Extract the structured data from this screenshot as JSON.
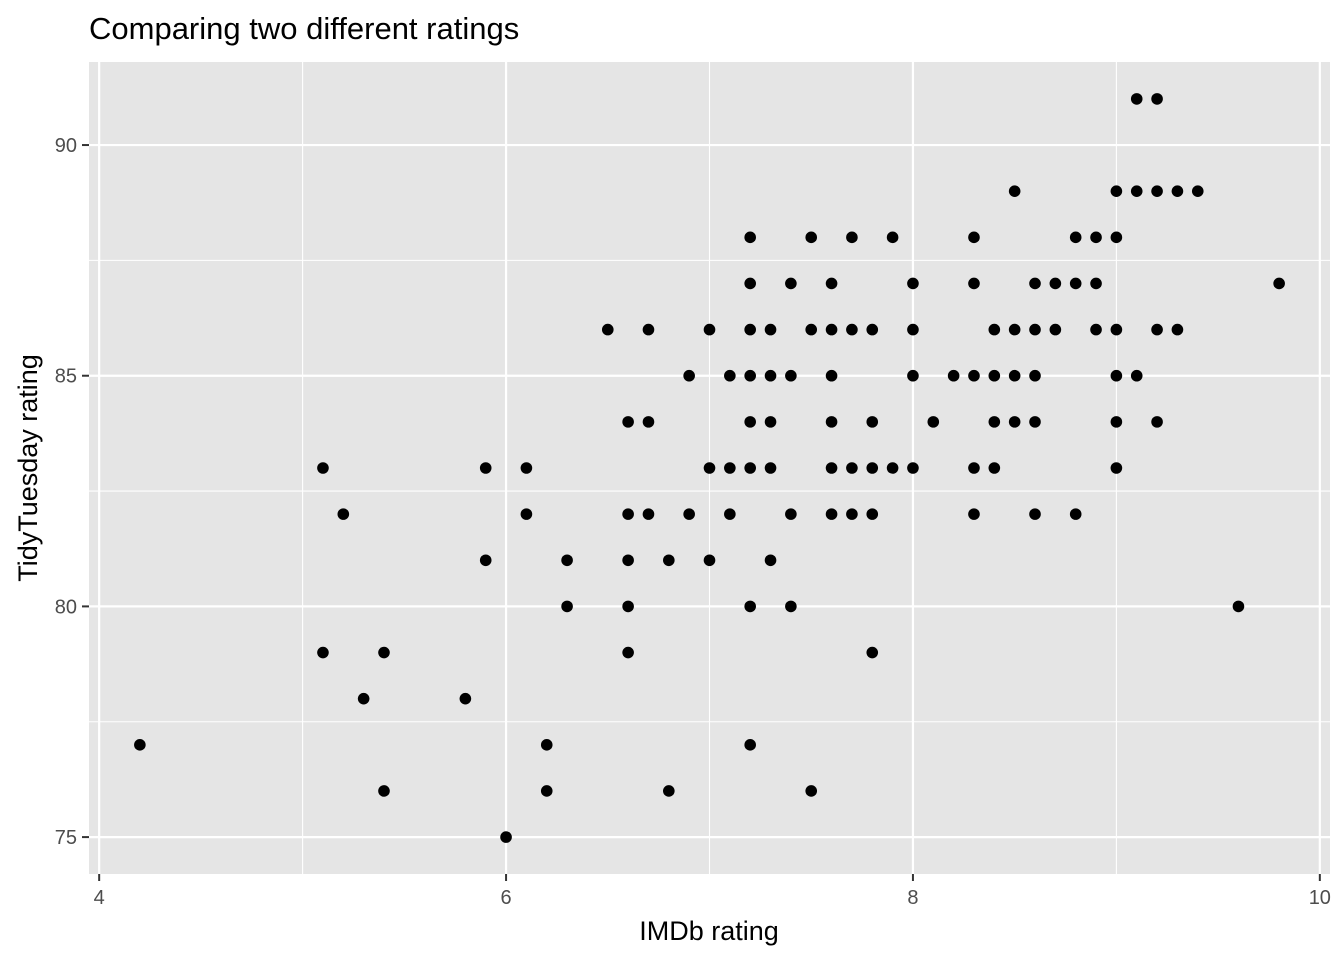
{
  "chart_data": {
    "type": "scatter",
    "title": "Comparing two different ratings",
    "xlabel": "IMDb rating",
    "ylabel": "TidyTuesday rating",
    "xlim": [
      3.95,
      10.05
    ],
    "ylim": [
      74.2,
      91.8
    ],
    "x_ticks": [
      4,
      6,
      8,
      10
    ],
    "x_tick_labels": [
      "4",
      "6",
      "8",
      "10"
    ],
    "y_ticks": [
      75,
      80,
      85,
      90
    ],
    "y_tick_labels": [
      "75",
      "80",
      "85",
      "90"
    ],
    "grid": true,
    "legend": "none",
    "colors": {
      "panel": "#e5e5e5",
      "grid": "#ffffff",
      "point": "#000000",
      "tick": "#333333"
    },
    "points": [
      [
        4.2,
        77
      ],
      [
        5.1,
        83
      ],
      [
        5.2,
        82
      ],
      [
        5.1,
        79
      ],
      [
        5.3,
        78
      ],
      [
        5.4,
        79
      ],
      [
        5.4,
        76
      ],
      [
        5.8,
        78
      ],
      [
        5.9,
        83
      ],
      [
        5.9,
        81
      ],
      [
        6.0,
        75
      ],
      [
        6.1,
        83
      ],
      [
        6.1,
        82
      ],
      [
        6.2,
        77
      ],
      [
        6.2,
        76
      ],
      [
        6.3,
        81
      ],
      [
        6.3,
        80
      ],
      [
        6.5,
        86
      ],
      [
        6.6,
        84
      ],
      [
        6.6,
        82
      ],
      [
        6.6,
        81
      ],
      [
        6.6,
        80
      ],
      [
        6.6,
        79
      ],
      [
        6.7,
        86
      ],
      [
        6.7,
        84
      ],
      [
        6.7,
        82
      ],
      [
        6.8,
        81
      ],
      [
        6.8,
        76
      ],
      [
        6.9,
        85
      ],
      [
        6.9,
        82
      ],
      [
        7.0,
        86
      ],
      [
        7.0,
        83
      ],
      [
        7.0,
        81
      ],
      [
        7.1,
        85
      ],
      [
        7.1,
        83
      ],
      [
        7.1,
        82
      ],
      [
        7.2,
        88
      ],
      [
        7.2,
        87
      ],
      [
        7.2,
        86
      ],
      [
        7.2,
        85
      ],
      [
        7.2,
        84
      ],
      [
        7.2,
        83
      ],
      [
        7.2,
        80
      ],
      [
        7.2,
        77
      ],
      [
        7.3,
        86
      ],
      [
        7.3,
        85
      ],
      [
        7.3,
        84
      ],
      [
        7.3,
        83
      ],
      [
        7.3,
        81
      ],
      [
        7.4,
        87
      ],
      [
        7.4,
        85
      ],
      [
        7.4,
        82
      ],
      [
        7.4,
        80
      ],
      [
        7.5,
        88
      ],
      [
        7.5,
        86
      ],
      [
        7.5,
        76
      ],
      [
        7.6,
        87
      ],
      [
        7.6,
        86
      ],
      [
        7.6,
        85
      ],
      [
        7.6,
        84
      ],
      [
        7.6,
        83
      ],
      [
        7.6,
        82
      ],
      [
        7.7,
        88
      ],
      [
        7.7,
        86
      ],
      [
        7.7,
        83
      ],
      [
        7.7,
        82
      ],
      [
        7.8,
        86
      ],
      [
        7.8,
        84
      ],
      [
        7.8,
        83
      ],
      [
        7.8,
        82
      ],
      [
        7.8,
        79
      ],
      [
        7.9,
        88
      ],
      [
        7.9,
        83
      ],
      [
        8.0,
        87
      ],
      [
        8.0,
        86
      ],
      [
        8.0,
        85
      ],
      [
        8.0,
        83
      ],
      [
        8.1,
        84
      ],
      [
        8.2,
        85
      ],
      [
        8.3,
        88
      ],
      [
        8.3,
        87
      ],
      [
        8.3,
        85
      ],
      [
        8.3,
        83
      ],
      [
        8.3,
        82
      ],
      [
        8.4,
        86
      ],
      [
        8.4,
        85
      ],
      [
        8.4,
        84
      ],
      [
        8.4,
        83
      ],
      [
        8.5,
        89
      ],
      [
        8.5,
        86
      ],
      [
        8.5,
        85
      ],
      [
        8.5,
        84
      ],
      [
        8.6,
        87
      ],
      [
        8.6,
        86
      ],
      [
        8.6,
        85
      ],
      [
        8.6,
        84
      ],
      [
        8.6,
        82
      ],
      [
        8.7,
        87
      ],
      [
        8.7,
        86
      ],
      [
        8.8,
        88
      ],
      [
        8.8,
        87
      ],
      [
        8.8,
        82
      ],
      [
        8.9,
        88
      ],
      [
        8.9,
        87
      ],
      [
        8.9,
        86
      ],
      [
        9.0,
        89
      ],
      [
        9.0,
        88
      ],
      [
        9.0,
        86
      ],
      [
        9.0,
        85
      ],
      [
        9.0,
        84
      ],
      [
        9.0,
        83
      ],
      [
        9.1,
        91
      ],
      [
        9.1,
        89
      ],
      [
        9.1,
        85
      ],
      [
        9.2,
        91
      ],
      [
        9.2,
        89
      ],
      [
        9.2,
        86
      ],
      [
        9.2,
        84
      ],
      [
        9.3,
        89
      ],
      [
        9.3,
        86
      ],
      [
        9.4,
        89
      ],
      [
        9.6,
        80
      ],
      [
        9.8,
        87
      ]
    ]
  }
}
